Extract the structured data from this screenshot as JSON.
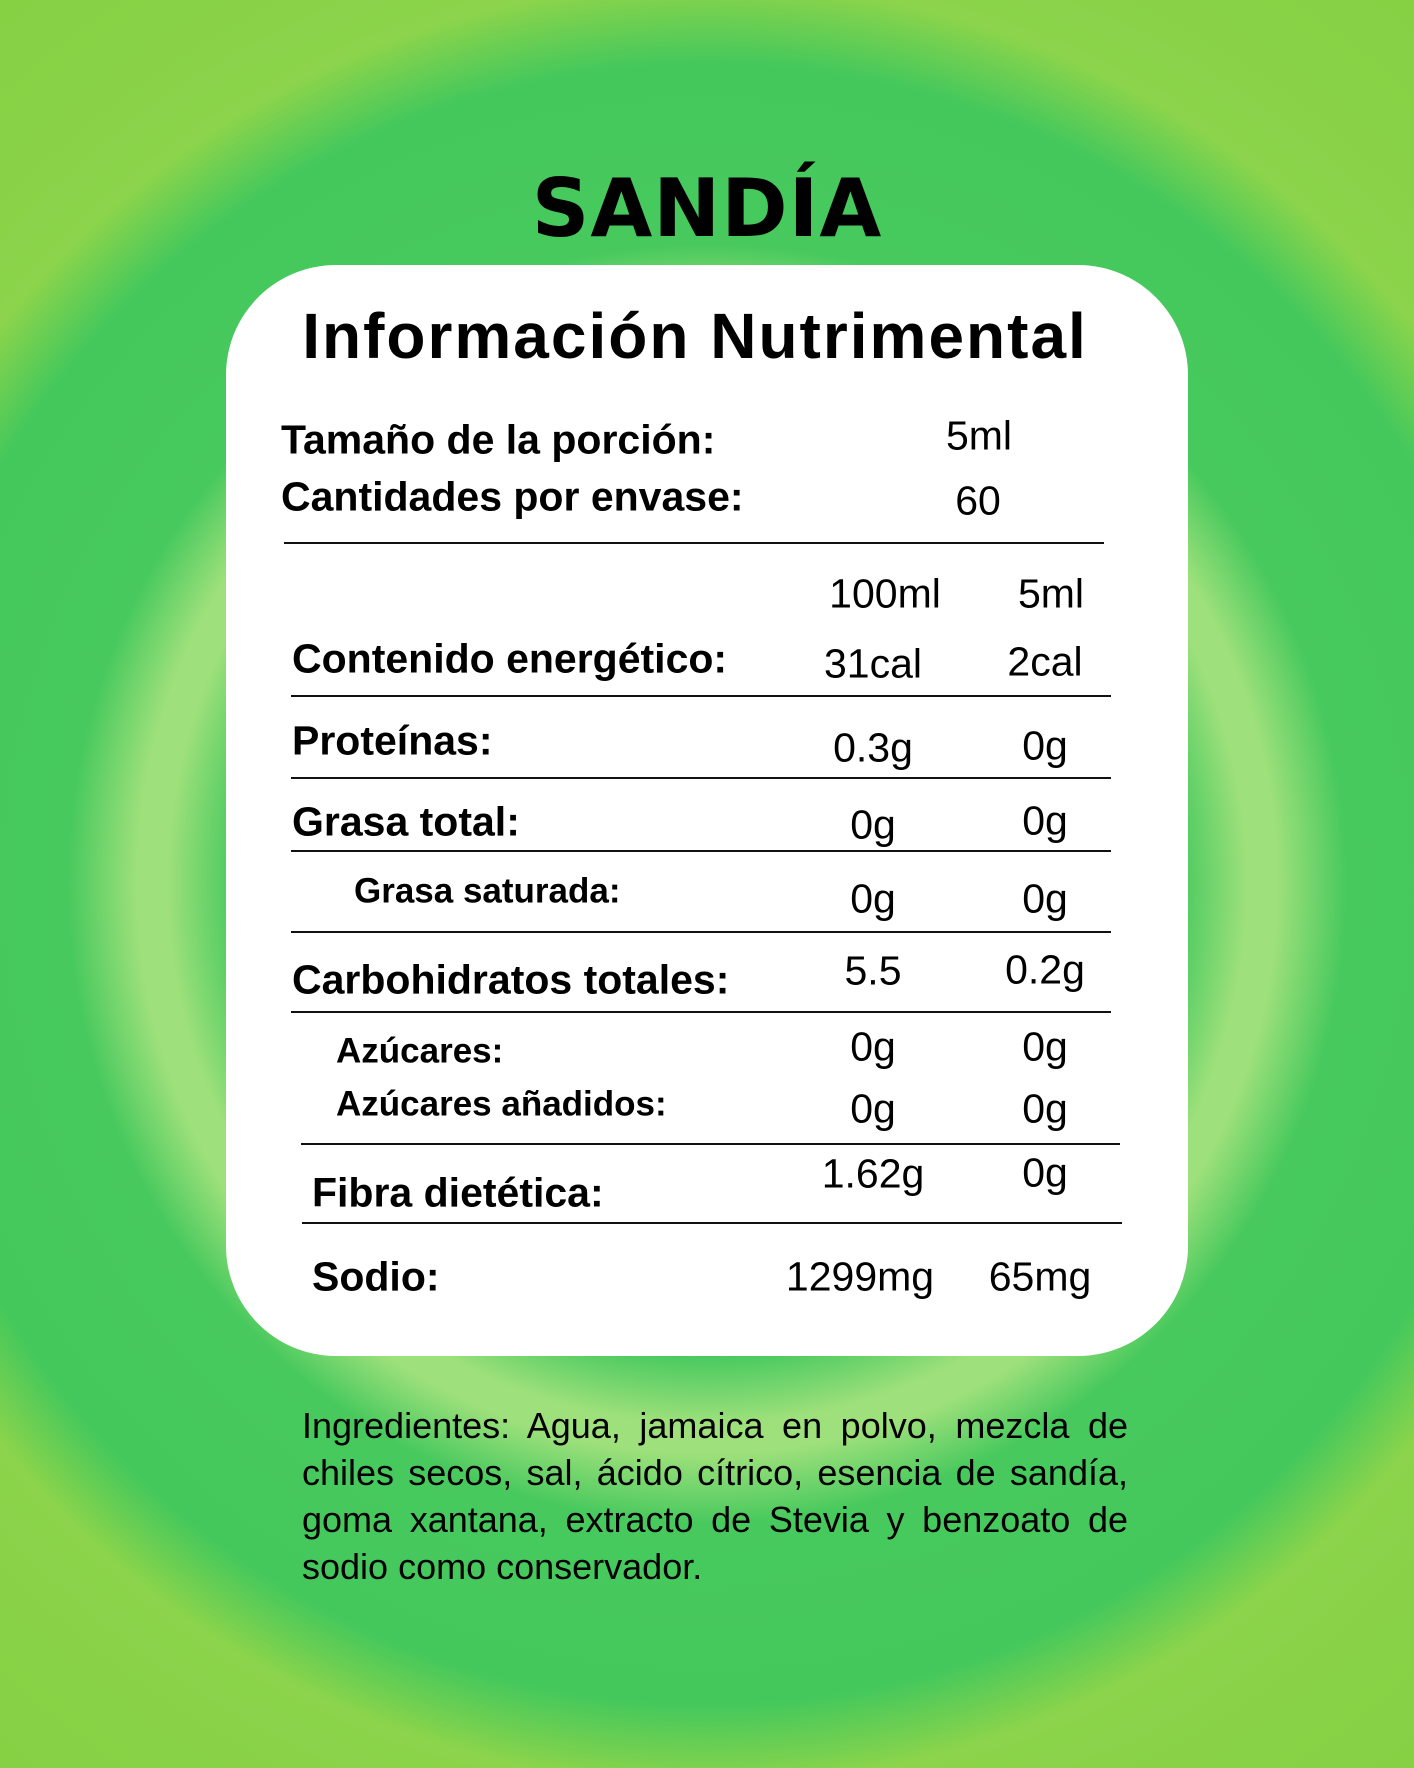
{
  "product_name": "SANDÍA",
  "heading": "Información Nutrimental",
  "serving": {
    "label": "Tamaño de la porción:",
    "value": "5ml"
  },
  "servings_per_container": {
    "label": "Cantidades por envase:",
    "value": "60"
  },
  "columns": [
    "100ml",
    "5ml"
  ],
  "rows": [
    {
      "label": "Contenido energético:",
      "per100": "31cal",
      "perServing": "2cal"
    },
    {
      "label": "Proteínas:",
      "per100": "0.3g",
      "perServing": "0g"
    },
    {
      "label": "Grasa total:",
      "per100": "0g",
      "perServing": "0g"
    },
    {
      "label": "Grasa saturada:",
      "per100": "0g",
      "perServing": "0g"
    },
    {
      "label": "Carbohidratos totales:",
      "per100": "5.5",
      "perServing": "0.2g"
    },
    {
      "label": "Azúcares:",
      "per100": "0g",
      "perServing": "0g"
    },
    {
      "label": "Azúcares añadidos:",
      "per100": "0g",
      "perServing": "0g"
    },
    {
      "label": "Fibra dietética:",
      "per100": "1.62g",
      "perServing": "0g"
    },
    {
      "label": "Sodio:",
      "per100": "1299mg",
      "perServing": "65mg"
    }
  ],
  "ingredients": "Ingredientes: Agua, jamaica en polvo, mezcla de chiles secos, sal, ácido cítrico, esencia de sandía, goma xantana, extracto de Stevia y benzoato de sodio como conservador.",
  "colors": {
    "background_green": "#46c95e",
    "background_light": "#9ee07b",
    "card": "#ffffff"
  }
}
